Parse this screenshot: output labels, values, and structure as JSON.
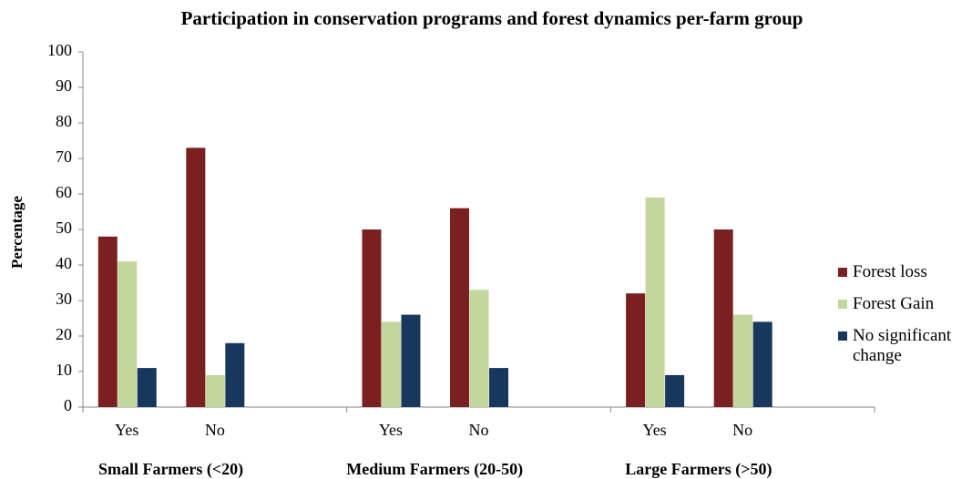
{
  "chart_data": {
    "type": "bar",
    "title": "Participation in conservation programs and forest dynamics per-farm group",
    "y_label": "Percentage",
    "categories": [
      "Yes",
      "No",
      null,
      "Yes",
      "No",
      null,
      "Yes",
      "No",
      null
    ],
    "group_labels": [
      "Small Farmers (<20)",
      "Medium Farmers (20-50)",
      "Large Farmers (>50)"
    ],
    "series": [
      {
        "name": "Forest loss",
        "color": "#7b2020",
        "values": [
          48,
          73,
          null,
          50,
          56,
          null,
          32,
          50,
          null
        ]
      },
      {
        "name": "Forest Gain",
        "color": "#c3d69b",
        "values": [
          41,
          9,
          null,
          24,
          33,
          null,
          59,
          26,
          null
        ]
      },
      {
        "name": "No significant change",
        "color": "#17375e",
        "values": [
          11,
          18,
          null,
          26,
          11,
          null,
          9,
          24,
          null
        ]
      }
    ],
    "ylim": [
      0,
      100
    ],
    "yticks": [
      0,
      10,
      20,
      30,
      40,
      50,
      60,
      70,
      80,
      90,
      100
    ],
    "grid": false,
    "legend": "right"
  }
}
